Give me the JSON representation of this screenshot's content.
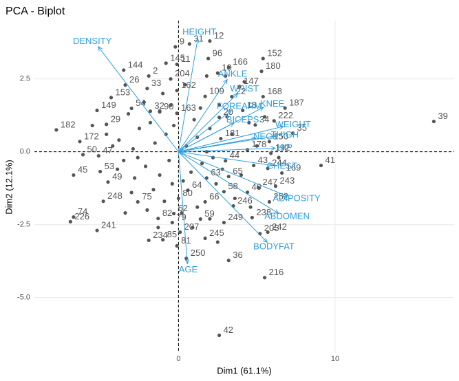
{
  "chart_data": {
    "type": "biplot",
    "title": "PCA - Biplot",
    "x_label": "Dim1 (61.1%)",
    "y_label": "Dim2 (12.1%)",
    "xlim": [
      -9.2,
      17.6
    ],
    "ylim": [
      -6.9,
      4.5
    ],
    "xticks": [
      0,
      10
    ],
    "yticks": [
      {
        "value": -5,
        "label": "-5.0"
      },
      {
        "value": -2.5,
        "label": "-2.5"
      },
      {
        "value": 0,
        "label": "0.0"
      },
      {
        "value": 2.5,
        "label": "2.5"
      }
    ],
    "grid": true,
    "reference_lines": {
      "x": 0,
      "y": 0
    },
    "point_color": "#555555",
    "arrow_color": "#2E9FDF",
    "points": {
      "labels": [
        "39",
        "41",
        "42",
        "216",
        "36",
        "250",
        "182",
        "172",
        "50",
        "45",
        "47",
        "226",
        "74",
        "241",
        "248",
        "49",
        "53",
        "149",
        "144",
        "153",
        "26",
        "54",
        "29",
        "33",
        "2",
        "145",
        "204",
        "9",
        "31",
        "11",
        "12",
        "96",
        "10",
        "166",
        "152",
        "180",
        "147",
        "109",
        "22",
        "168",
        "162",
        "90",
        "32",
        "163",
        "20",
        "18",
        "187",
        "222",
        "34",
        "35",
        "181",
        "150",
        "178",
        "192",
        "43",
        "44",
        "244",
        "169",
        "65",
        "63",
        "247",
        "243",
        "58",
        "40",
        "64",
        "75",
        "80",
        "66",
        "246",
        "252",
        "238",
        "62",
        "82",
        "79",
        "59",
        "249",
        "207",
        "205",
        "242",
        "245",
        "85",
        "234",
        "81",
        null,
        null,
        null,
        null,
        null,
        null,
        null,
        null,
        null,
        null,
        null,
        null,
        null,
        null,
        null,
        null,
        null,
        null,
        null,
        null,
        null,
        null,
        null,
        null,
        null,
        null,
        null,
        null,
        null,
        null,
        null,
        null,
        null,
        null,
        null,
        null,
        null,
        null,
        null,
        null,
        null,
        null,
        null,
        null,
        null,
        null,
        null,
        null,
        null,
        null,
        null,
        null,
        null,
        null,
        null,
        null,
        null,
        null,
        null,
        null
      ],
      "x": [
        16.3,
        9.1,
        2.6,
        5.5,
        3.2,
        0.5,
        -7.8,
        -6.3,
        -6.1,
        -6.7,
        -5.1,
        -6.9,
        -6.7,
        -5.2,
        -4.8,
        -4.5,
        -5.0,
        -5.2,
        -3.5,
        -4.3,
        -3.4,
        -3.0,
        -4.6,
        -2.0,
        -1.9,
        -0.8,
        -0.5,
        -0.2,
        0.7,
        -0.1,
        2.0,
        1.9,
        2.5,
        3.2,
        5.4,
        5.3,
        3.9,
        1.7,
        3.4,
        5.4,
        -0.1,
        -1.2,
        -1.8,
        -0.1,
        2.6,
        4.1,
        6.8,
        6.1,
        4.9,
        7.3,
        2.7,
        5.8,
        4.4,
        5.9,
        4.8,
        3.0,
        5.7,
        6.6,
        3.2,
        1.8,
        5.1,
        6.2,
        2.9,
        4.4,
        0.6,
        -2.6,
        0.0,
        1.7,
        3.5,
        5.8,
        4.7,
        -0.3,
        -1.3,
        -0.4,
        1.4,
        2.9,
        0.1,
        5.2,
        5.7,
        1.7,
        -1.0,
        -1.9,
        -0.1,
        -3.8,
        -2.9,
        -3.5,
        -2.1,
        -1.5,
        -1.2,
        -0.8,
        -2.5,
        -1.8,
        -0.6,
        0.5,
        1.2,
        1.5,
        2.2,
        2.0,
        1.0,
        0.8,
        -0.4,
        -1.6,
        -2.8,
        -3.9,
        -4.2,
        -3.2,
        -2.2,
        -1.0,
        0.4,
        1.4,
        2.6,
        3.4,
        4.0,
        3.6,
        2.4,
        1.2,
        0.2,
        -0.9,
        -2.0,
        -3.0,
        0.9,
        2.0,
        4.6,
        5.0,
        4.5,
        3.0,
        1.8,
        -0.5,
        -4.6,
        -5.5,
        -3.4,
        -1.3,
        2.5,
        3.1,
        5.5,
        6.4,
        -0.3,
        -2.6,
        0.3,
        1.8,
        -1.2,
        4.2,
        2.8
      ],
      "y": [
        1.04,
        -0.47,
        -6.3,
        -4.32,
        -3.73,
        -3.66,
        0.75,
        0.35,
        -0.1,
        -0.8,
        -0.14,
        -2.4,
        -2.24,
        -2.7,
        -1.7,
        -1.04,
        -0.68,
        1.42,
        2.8,
        1.86,
        2.29,
        1.49,
        0.94,
        2.17,
        2.6,
        3.04,
        2.5,
        3.6,
        3.7,
        3.0,
        3.8,
        3.2,
        2.7,
        2.9,
        3.2,
        2.76,
        2.24,
        1.9,
        1.89,
        1.89,
        2.1,
        1.37,
        1.39,
        1.32,
        1.18,
        1.42,
        1.5,
        1.06,
        0.92,
        0.64,
        0.45,
        0.35,
        0.07,
        -0.05,
        -0.47,
        -0.31,
        -0.57,
        -0.73,
        -0.85,
        -0.9,
        -1.23,
        -1.18,
        -1.37,
        -1.39,
        -1.32,
        -1.72,
        -1.6,
        -1.72,
        -1.86,
        -1.72,
        -2.26,
        -2.12,
        -2.29,
        -2.43,
        -2.31,
        -2.43,
        -2.76,
        -2.81,
        -2.76,
        -2.97,
        -3.02,
        -3.04,
        -3.23,
        0.4,
        0.1,
        -0.3,
        -0.5,
        0.3,
        -0.8,
        0.6,
        0.8,
        1.0,
        -0.3,
        0.2,
        0.5,
        -0.4,
        -0.2,
        0.8,
        1.1,
        -0.7,
        -1.1,
        -1.3,
        -0.9,
        -0.6,
        0.2,
        1.3,
        1.7,
        2.0,
        2.3,
        1.5,
        1.6,
        0.6,
        -0.8,
        -1.6,
        -1.1,
        -1.9,
        -2.1,
        -1.7,
        -2.0,
        -1.4,
        -2.6,
        -2.3,
        -1.9,
        0.2,
        1.0,
        2.6,
        2.6,
        1.6,
        0.6,
        0.9,
        -2.1,
        -2.6,
        -3.1,
        1.2,
        1.2,
        -0.2,
        0.9,
        -0.2,
        -1.0,
        0.0,
        1.4,
        2.4,
        -0.6
      ]
    },
    "variables": {
      "names": [
        "DENSITY",
        "HEIGHT",
        "ANKLE",
        "WRIST",
        "FOREARM",
        "KNEE",
        "BICEPS",
        "WEIGHT",
        "NECK",
        "THIGH",
        "HIP",
        "CHEST",
        "ADIPOSITY",
        "ABDOMEN",
        "BODYFAT",
        "AGE"
      ],
      "x": [
        -5.13,
        1.23,
        3.11,
        3.77,
        3.38,
        5.44,
        3.55,
        6.71,
        4.96,
        6.18,
        6.18,
        6.0,
        6.97,
        6.4,
        5.66,
        0.57
      ],
      "y": [
        3.61,
        3.89,
        2.48,
        2.0,
        1.42,
        1.53,
        0.99,
        0.87,
        0.47,
        0.54,
        0.12,
        -0.47,
        -1.53,
        -2.12,
        -3.11,
        -3.84
      ]
    }
  }
}
